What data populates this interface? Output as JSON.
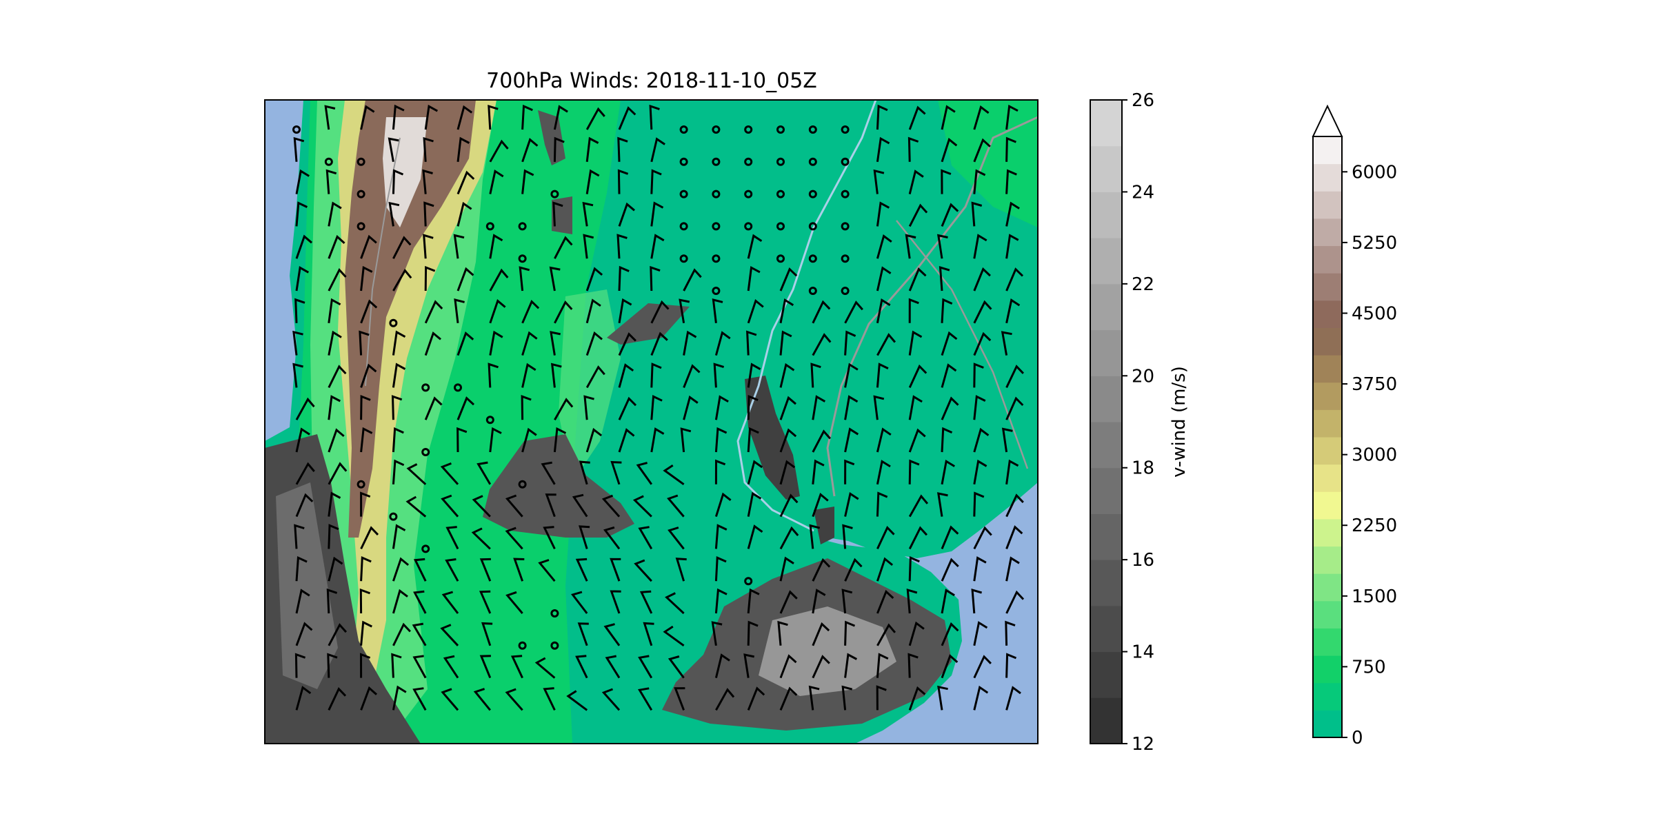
{
  "map": {
    "title": "700hPa Winds: 2018-11-10_05Z",
    "colors": {
      "ocean": "#94b4e0",
      "lowland": "#02be8a",
      "low_green": "#0acf6c",
      "mid_green": "#55e080",
      "high_yellow": "#d8d880",
      "peak_brown": "#8a6a5a",
      "snow": "#f0eeee",
      "barb": "#000000",
      "border": "#9a9a9a",
      "coast": "#aad0e8"
    }
  },
  "colorbar_vwind": {
    "label": "v-wind (m/s)",
    "ticks": [
      "12",
      "14",
      "16",
      "18",
      "20",
      "22",
      "24",
      "26"
    ],
    "range": [
      12,
      26
    ],
    "levels": 14,
    "color_low": "#333333",
    "color_high": "#d4d4d4"
  },
  "colorbar_terrain": {
    "ticks": [
      "0",
      "750",
      "1500",
      "2250",
      "3000",
      "3750",
      "4500",
      "5250",
      "6000"
    ],
    "range": [
      0,
      6375
    ],
    "extend": "max",
    "colors": [
      "#00bf8a",
      "#06c97a",
      "#12d069",
      "#33d86e",
      "#5adf7e",
      "#7fe585",
      "#a6ec89",
      "#cdf38d",
      "#f1f891",
      "#e7e388",
      "#d5cb78",
      "#c3b36a",
      "#b29b60",
      "#a08358",
      "#8f6f56",
      "#8e6a5c",
      "#9d7e74",
      "#ad938c",
      "#bfaba6",
      "#d2c3bf",
      "#e4dbd9",
      "#f4f1f1"
    ]
  }
}
